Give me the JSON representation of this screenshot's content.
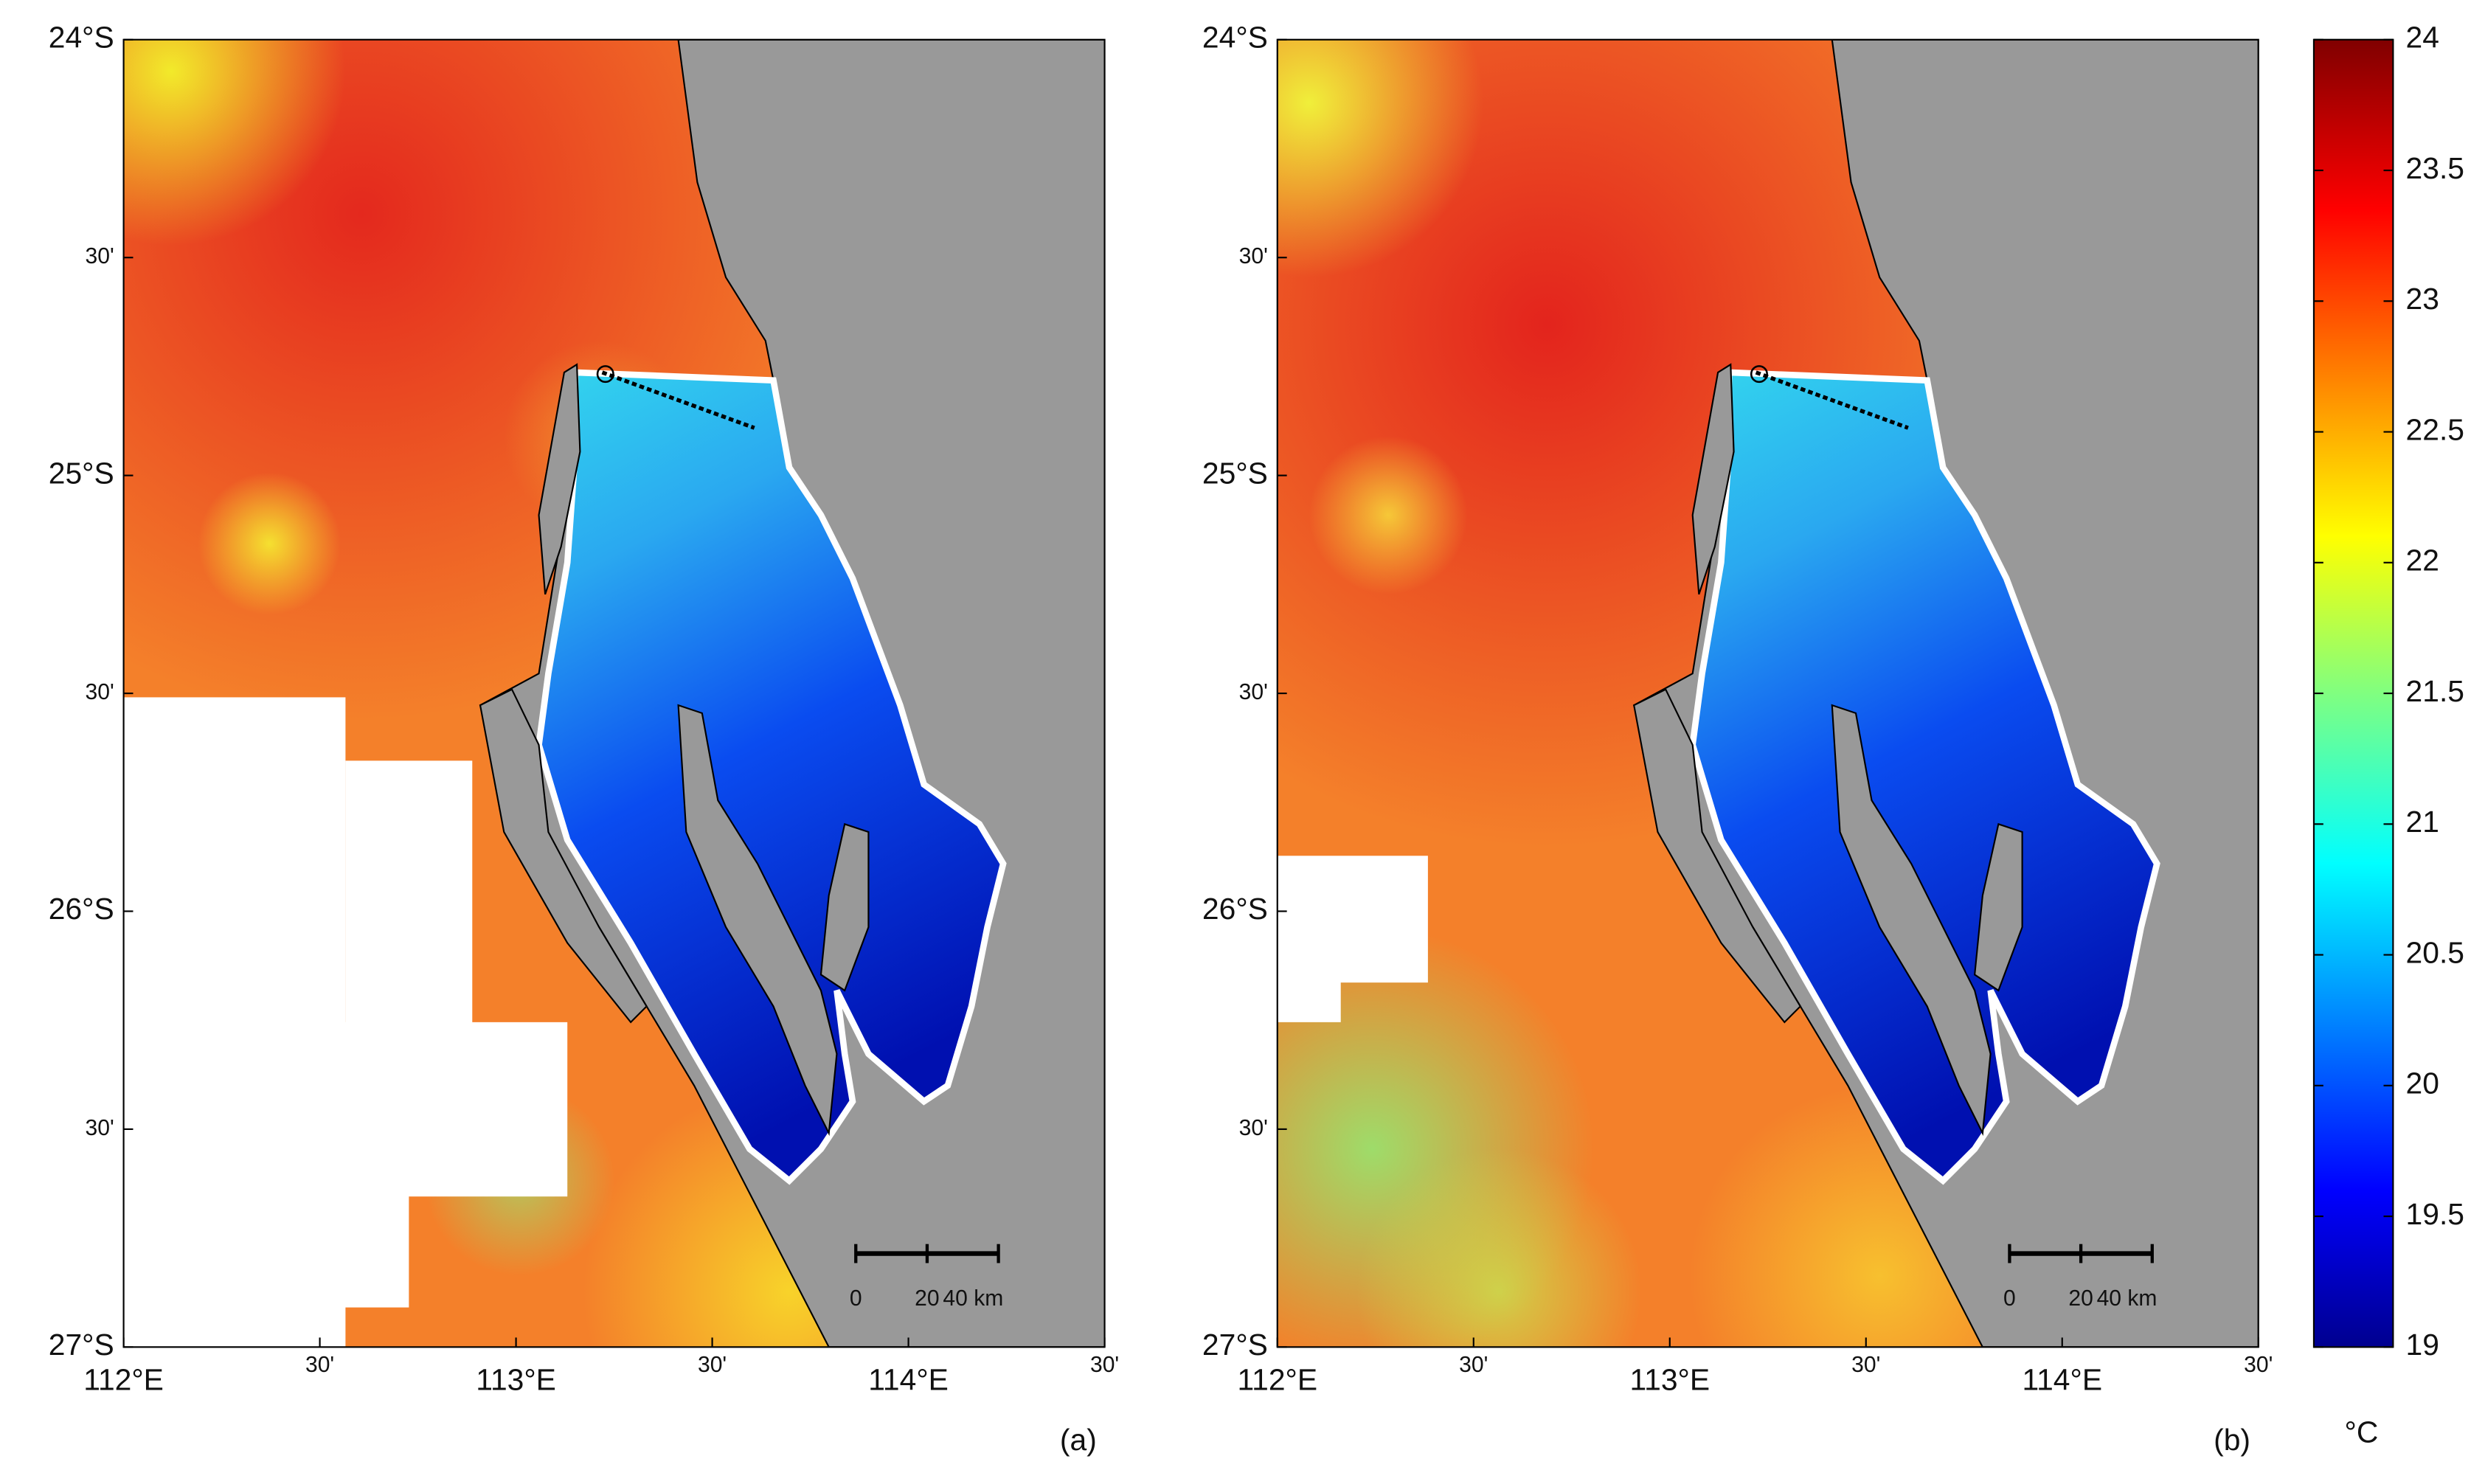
{
  "panels": [
    {
      "label": "(a)"
    },
    {
      "label": "(b)"
    }
  ],
  "lat_labels": [
    "24°S",
    "30'",
    "25°S",
    "30'",
    "26°S",
    "30'",
    "27°S"
  ],
  "lon_labels": [
    "112°E",
    "30'",
    "113°E",
    "30'",
    "114°E",
    "30'"
  ],
  "scale_bar": {
    "labels": [
      "0",
      "20",
      "40 km"
    ]
  },
  "colorbar": {
    "unit": "°C",
    "lim": [
      19,
      24
    ],
    "ticks": [
      19,
      19.5,
      20,
      20.5,
      21,
      21.5,
      22,
      22.5,
      23,
      23.5,
      24
    ]
  }
}
